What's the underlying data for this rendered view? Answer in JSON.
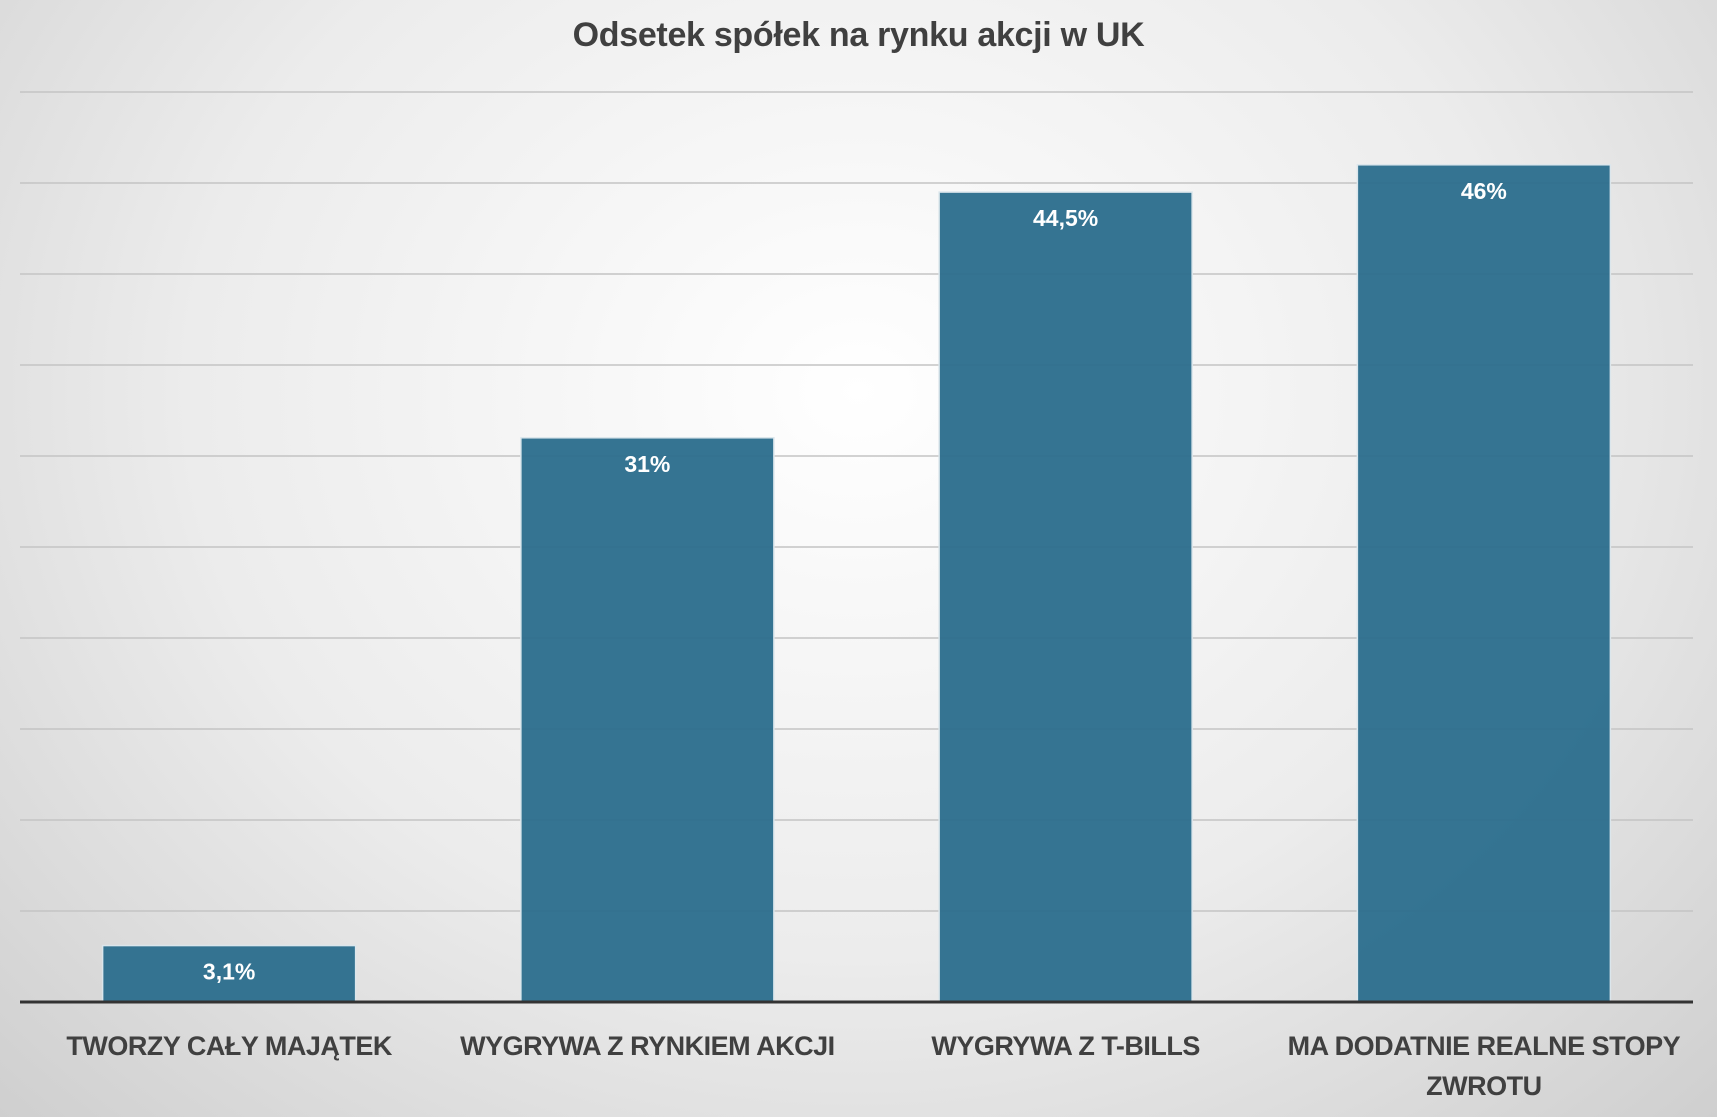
{
  "chart_data": {
    "type": "bar",
    "title": "Odsetek spółek na rynku akcji w UK",
    "categories": [
      "TWORZY CAŁY MAJĄTEK",
      "WYGRYWA Z RYNKIEM AKCJI",
      "WYGRYWA Z T-BILLS",
      "MA DODATNIE REALNE STOPY ZWROTU"
    ],
    "values": [
      3.1,
      31,
      44.5,
      46
    ],
    "value_labels": [
      "3,1%",
      "31%",
      "44,5%",
      "46%"
    ],
    "color": "#2e6f8e",
    "ylim": [
      0,
      50
    ],
    "yticks": [
      0,
      5,
      10,
      15,
      20,
      25,
      30,
      35,
      40,
      45,
      50
    ],
    "grid": true
  }
}
